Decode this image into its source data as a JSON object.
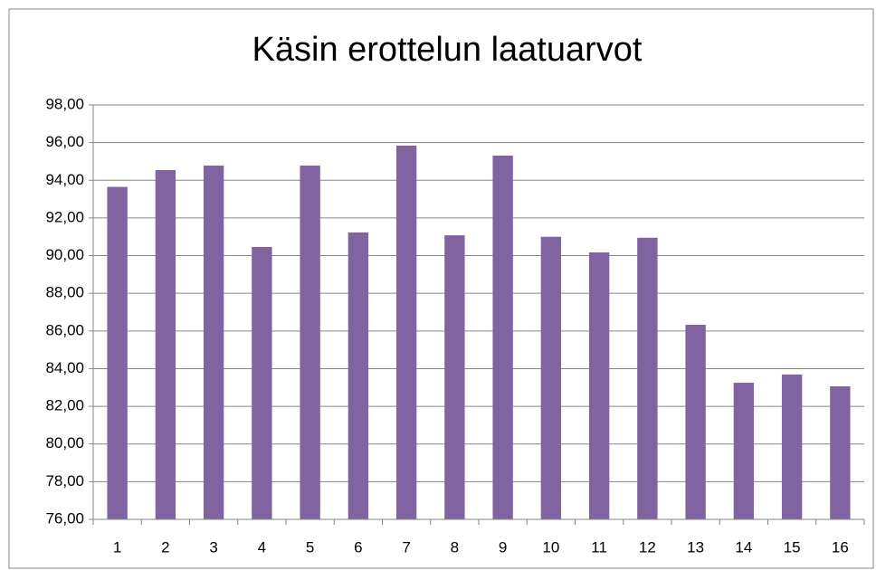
{
  "chart_data": {
    "type": "bar",
    "title": "Käsin erottelun laatuarvot",
    "categories": [
      "1",
      "2",
      "3",
      "4",
      "5",
      "6",
      "7",
      "8",
      "9",
      "10",
      "11",
      "12",
      "13",
      "14",
      "15",
      "16"
    ],
    "values": [
      93.65,
      94.54,
      94.78,
      90.46,
      94.78,
      91.23,
      95.84,
      91.08,
      95.31,
      91.0,
      90.17,
      90.95,
      86.33,
      83.25,
      83.69,
      83.06
    ],
    "color": "#8064a2",
    "ylim": [
      76,
      98
    ],
    "yticks": [
      {
        "value": 76,
        "label": "76,00"
      },
      {
        "value": 78,
        "label": "78,00"
      },
      {
        "value": 80,
        "label": "80,00"
      },
      {
        "value": 82,
        "label": "82,00"
      },
      {
        "value": 84,
        "label": "84,00"
      },
      {
        "value": 86,
        "label": "86,00"
      },
      {
        "value": 88,
        "label": "88,00"
      },
      {
        "value": 90,
        "label": "90,00"
      },
      {
        "value": 92,
        "label": "92,00"
      },
      {
        "value": 94,
        "label": "94,00"
      },
      {
        "value": 96,
        "label": "96,00"
      },
      {
        "value": 98,
        "label": "98,00"
      }
    ],
    "grid": true
  }
}
